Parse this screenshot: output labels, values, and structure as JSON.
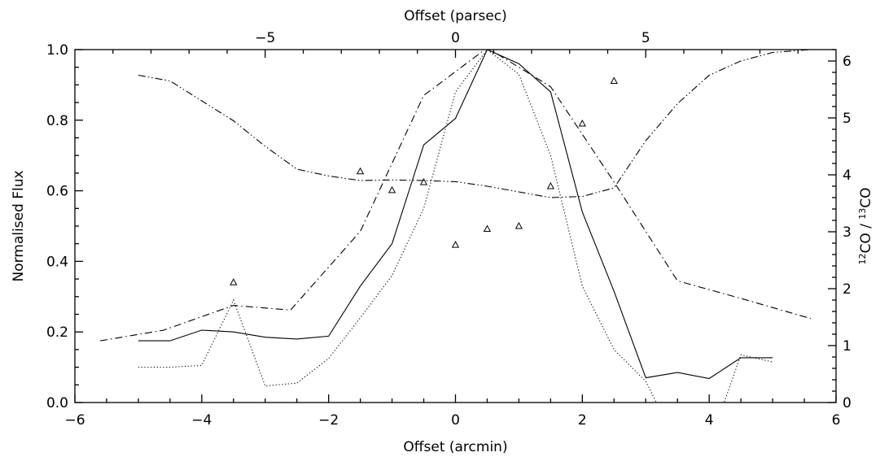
{
  "chart_data": {
    "type": "line",
    "axes": {
      "bottom": {
        "label": "Offset (arcmin)",
        "range": [
          -6,
          6
        ],
        "ticks": [
          -6,
          -4,
          -2,
          0,
          2,
          4,
          6
        ],
        "tick_labels": [
          "−6",
          "−4",
          "−2",
          "0",
          "2",
          "4",
          "6"
        ]
      },
      "top": {
        "label": "Offset (parsec)",
        "ticks": [
          -5,
          0,
          5
        ],
        "tick_labels": [
          "−5",
          "0",
          "5"
        ],
        "parsec_per_arcmin": 1.6667
      },
      "left": {
        "label": "Normalised Flux",
        "range": [
          0,
          1
        ],
        "ticks": [
          0,
          0.2,
          0.4,
          0.6,
          0.8,
          1.0
        ],
        "tick_labels": [
          "0.0",
          "0.2",
          "0.4",
          "0.6",
          "0.8",
          "1.0"
        ]
      },
      "right": {
        "label_parts": [
          "12",
          "CO / ",
          "13",
          "CO"
        ],
        "range": [
          0,
          6.2
        ],
        "ticks": [
          0,
          1,
          2,
          3,
          4,
          5,
          6
        ],
        "tick_labels": [
          "0",
          "1",
          "2",
          "3",
          "4",
          "5",
          "6"
        ]
      }
    },
    "series": [
      {
        "style": "solid",
        "axis": "left",
        "x": [
          -5,
          -4.5,
          -4,
          -3.5,
          -3,
          -2.5,
          -2,
          -1.5,
          -1,
          -0.5,
          0,
          0.5,
          1,
          1.5,
          2,
          2.5,
          3,
          3.5,
          4,
          4.5,
          5
        ],
        "y": [
          0.175,
          0.175,
          0.205,
          0.2,
          0.185,
          0.18,
          0.188,
          0.33,
          0.45,
          0.73,
          0.805,
          1.0,
          0.96,
          0.88,
          0.54,
          0.315,
          0.07,
          0.085,
          0.068,
          0.127,
          0.127
        ]
      },
      {
        "style": "dotted",
        "axis": "left",
        "x": [
          -5,
          -4.5,
          -4,
          -3.5,
          -3,
          -2.5,
          -2,
          -1.5,
          -1,
          -0.5,
          0,
          0.5,
          1,
          1.5,
          2,
          2.5,
          3,
          3.5,
          4,
          4.5,
          5
        ],
        "y": [
          0.1,
          0.1,
          0.105,
          0.29,
          0.047,
          0.055,
          0.125,
          0.24,
          0.36,
          0.55,
          0.88,
          1.0,
          0.93,
          0.7,
          0.33,
          0.15,
          0.06,
          -0.12,
          -0.12,
          0.135,
          0.115
        ]
      },
      {
        "style": "dash-dot",
        "axis": "left",
        "x": [
          -5.6,
          -4.6,
          -3.5,
          -2.6,
          -1.5,
          -0.5,
          0.5,
          1.5,
          2.5,
          3.5,
          4.5,
          5.6
        ],
        "y": [
          0.175,
          0.205,
          0.275,
          0.262,
          0.485,
          0.87,
          1.005,
          0.895,
          0.625,
          0.345,
          0.295,
          0.238
        ]
      },
      {
        "style": "dash-dot-dot",
        "axis": "right",
        "x": [
          -5,
          -4.5,
          -4,
          -3.5,
          -3,
          -2.5,
          -2,
          -1.5,
          -1,
          -0.5,
          0,
          0.5,
          1,
          1.5,
          2,
          2.5,
          3,
          3.5,
          4,
          4.5,
          5,
          5.6
        ],
        "y": [
          5.75,
          5.65,
          5.3,
          4.95,
          4.5,
          4.1,
          3.98,
          3.9,
          3.91,
          3.9,
          3.88,
          3.8,
          3.7,
          3.6,
          3.62,
          3.77,
          4.6,
          5.25,
          5.75,
          6.0,
          6.15,
          6.2
        ]
      }
    ],
    "markers": {
      "shape": "triangle",
      "axis": "right",
      "x": [
        -3.5,
        -1.5,
        -1.0,
        -0.5,
        0.0,
        0.5,
        1.0,
        1.5,
        2.0,
        2.5
      ],
      "y": [
        2.11,
        4.06,
        3.73,
        3.87,
        2.77,
        3.05,
        3.1,
        3.8,
        4.9,
        5.65
      ]
    }
  }
}
